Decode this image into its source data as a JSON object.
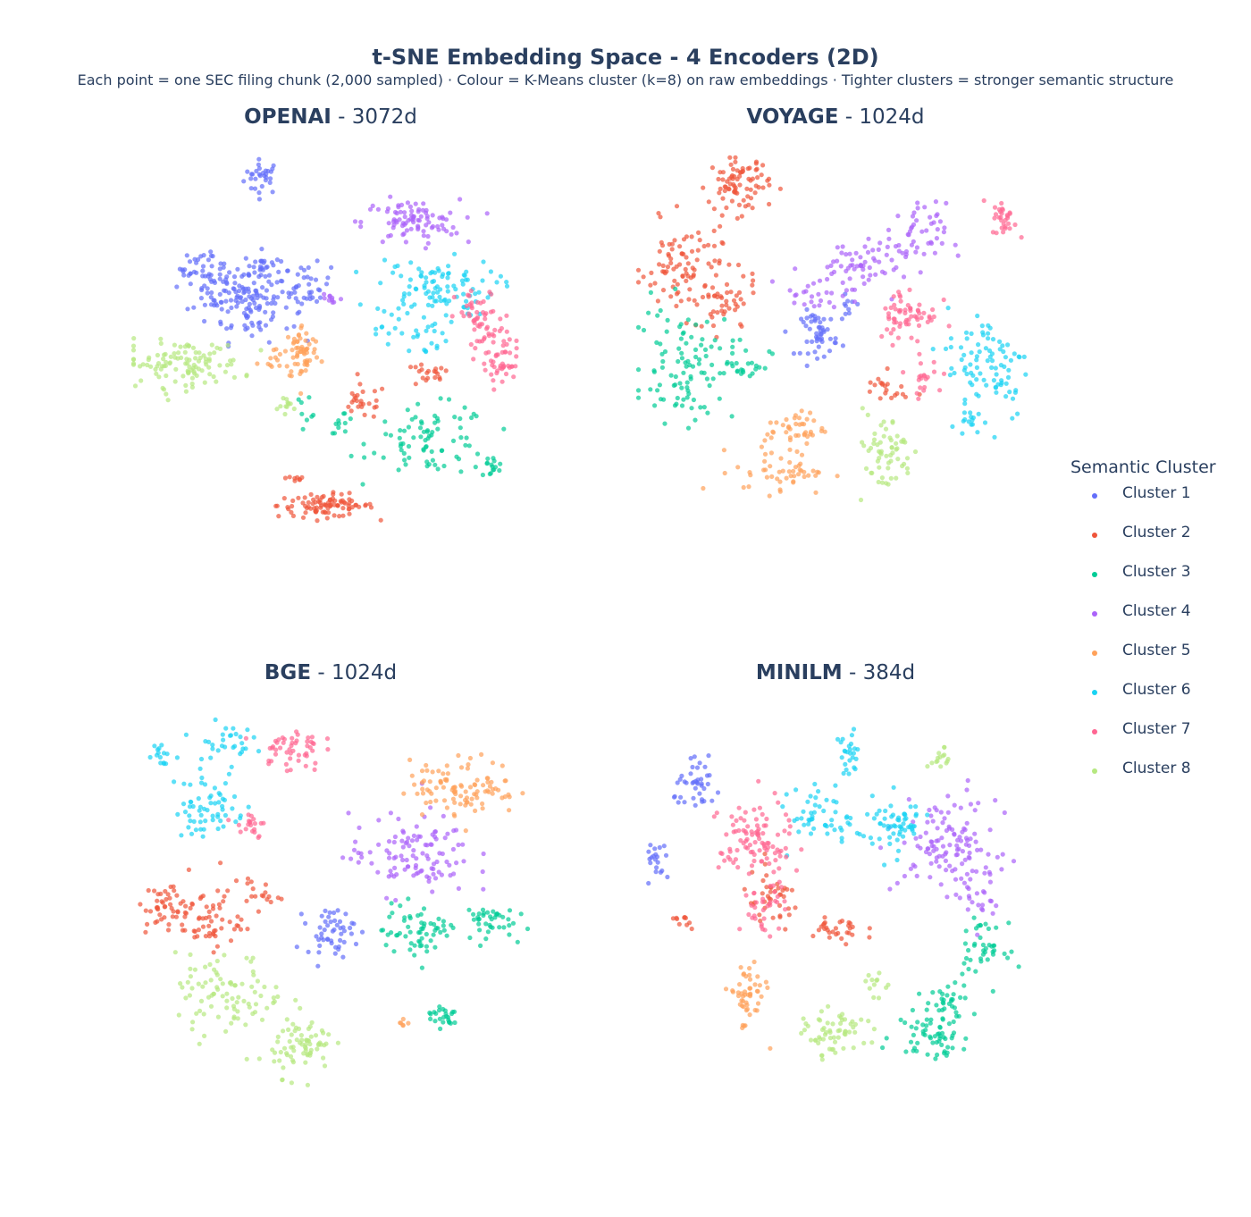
{
  "title": "t-SNE Embedding Space - 4 Encoders (2D)",
  "subtitle": "Each point = one SEC filing chunk (2,000 sampled) · Colour = K-Means cluster (k=8) on raw embeddings · Tighter clusters = stronger semantic structure",
  "legend": {
    "title": "Semantic Cluster",
    "items": [
      "Cluster 1",
      "Cluster 2",
      "Cluster 3",
      "Cluster 4",
      "Cluster 5",
      "Cluster 6",
      "Cluster 7",
      "Cluster 8"
    ]
  },
  "colors": [
    "#636efa",
    "#ef553b",
    "#00cc96",
    "#ab63fa",
    "#ffa15a",
    "#19d3f3",
    "#ff6692",
    "#b6e880"
  ],
  "chart_data": [
    {
      "type": "scatter",
      "panel_title_bold": "OPENAI",
      "panel_title_rest": " - 3072d",
      "xlim": [
        -50,
        50
      ],
      "ylim": [
        -50,
        50
      ],
      "clusters": [
        {
          "name": "Cluster 1",
          "centers": [
            [
              -17,
              44,
              3,
              3,
              30
            ],
            [
              -33,
              20,
              3,
              3,
              20
            ],
            [
              -27,
              15,
              6,
              5,
              70
            ],
            [
              -20,
              10,
              7,
              6,
              80
            ],
            [
              -17,
              20,
              3,
              3,
              30
            ],
            [
              -6,
              15,
              4,
              4,
              40
            ]
          ]
        },
        {
          "name": "Cluster 2",
          "centers": [
            [
              -1,
              -42,
              8,
              2,
              90
            ],
            [
              8,
              -15,
              4,
              3,
              25
            ],
            [
              24,
              -8,
              4,
              2,
              20
            ],
            [
              -9,
              -35,
              2,
              1,
              8
            ]
          ]
        },
        {
          "name": "Cluster 3",
          "centers": [
            [
              25,
              -25,
              10,
              6,
              80
            ],
            [
              3,
              -20,
              2,
              2,
              10
            ],
            [
              40,
              -32,
              2,
              2,
              15
            ],
            [
              -6,
              -16,
              2,
              2,
              8
            ]
          ]
        },
        {
          "name": "Cluster 4",
          "centers": [
            [
              20,
              32,
              8,
              4,
              90
            ],
            [
              0,
              12,
              2,
              2,
              10
            ]
          ]
        },
        {
          "name": "Cluster 5",
          "centers": [
            [
              -7,
              -2,
              3,
              5,
              60
            ],
            [
              -15,
              -4,
              2,
              2,
              10
            ]
          ]
        },
        {
          "name": "Cluster 6",
          "centers": [
            [
              26,
              15,
              10,
              5,
              100
            ],
            [
              20,
              3,
              6,
              4,
              30
            ]
          ]
        },
        {
          "name": "Cluster 7",
          "centers": [
            [
              42,
              -5,
              4,
              4,
              40
            ],
            [
              37,
              7,
              4,
              5,
              40
            ],
            [
              40,
              3,
              3,
              3,
              20
            ]
          ]
        },
        {
          "name": "Cluster 8",
          "centers": [
            [
              -37,
              -5,
              10,
              4,
              110
            ],
            [
              -10,
              -16,
              2,
              2,
              12
            ]
          ]
        }
      ]
    },
    {
      "type": "scatter",
      "panel_title_bold": "VOYAGE",
      "panel_title_rest": " - 1024d",
      "xlim": [
        -50,
        50
      ],
      "ylim": [
        -50,
        50
      ],
      "clusters": [
        {
          "name": "Cluster 1",
          "centers": [
            [
              -4,
              3,
              3,
              4,
              50
            ],
            [
              3,
              10,
              2,
              2,
              10
            ]
          ]
        },
        {
          "name": "Cluster 2",
          "centers": [
            [
              -24,
              42,
              5,
              5,
              80
            ],
            [
              -37,
              20,
              8,
              8,
              90
            ],
            [
              -28,
              10,
              6,
              5,
              40
            ],
            [
              12,
              -12,
              4,
              3,
              20
            ]
          ]
        },
        {
          "name": "Cluster 3",
          "centers": [
            [
              -37,
              -5,
              8,
              10,
              100
            ],
            [
              -22,
              -5,
              4,
              3,
              20
            ]
          ]
        },
        {
          "name": "Cluster 4",
          "centers": [
            [
              4,
              20,
              8,
              5,
              60
            ],
            [
              20,
              28,
              5,
              6,
              50
            ],
            [
              -6,
              13,
              5,
              3,
              20
            ]
          ]
        },
        {
          "name": "Cluster 5",
          "centers": [
            [
              -13,
              -33,
              8,
              4,
              50
            ],
            [
              -10,
              -22,
              5,
              3,
              40
            ]
          ]
        },
        {
          "name": "Cluster 6",
          "centers": [
            [
              38,
              -5,
              7,
              10,
              90
            ],
            [
              34,
              -20,
              2,
              2,
              12
            ]
          ]
        },
        {
          "name": "Cluster 7",
          "centers": [
            [
              42,
              33,
              2,
              3,
              30
            ],
            [
              18,
              8,
              5,
              5,
              60
            ],
            [
              22,
              -8,
              3,
              3,
              20
            ]
          ]
        },
        {
          "name": "Cluster 8",
          "centers": [
            [
              12,
              -28,
              5,
              7,
              60
            ]
          ]
        }
      ]
    },
    {
      "type": "scatter",
      "panel_title_bold": "BGE",
      "panel_title_rest": " - 1024d",
      "xlim": [
        -50,
        50
      ],
      "ylim": [
        -50,
        50
      ],
      "clusters": [
        {
          "name": "Cluster 1",
          "centers": [
            [
              0,
              -8,
              4,
              4,
              50
            ]
          ]
        },
        {
          "name": "Cluster 2",
          "centers": [
            [
              -40,
              -2,
              4,
              5,
              50
            ],
            [
              -30,
              -5,
              5,
              5,
              50
            ],
            [
              -20,
              2,
              5,
              3,
              20
            ]
          ]
        },
        {
          "name": "Cluster 3",
          "centers": [
            [
              22,
              -8,
              6,
              5,
              60
            ],
            [
              38,
              -5,
              5,
              3,
              40
            ],
            [
              28,
              -30,
              3,
              2,
              25
            ]
          ]
        },
        {
          "name": "Cluster 4",
          "centers": [
            [
              20,
              12,
              10,
              7,
              110
            ]
          ]
        },
        {
          "name": "Cluster 5",
          "centers": [
            [
              33,
              30,
              9,
              5,
              100
            ],
            [
              18,
              -32,
              1,
              1,
              6
            ]
          ]
        },
        {
          "name": "Cluster 6",
          "centers": [
            [
              -42,
              38,
              2,
              2,
              15
            ],
            [
              -30,
              25,
              6,
              6,
              60
            ],
            [
              -27,
              42,
              5,
              3,
              30
            ]
          ]
        },
        {
          "name": "Cluster 7",
          "centers": [
            [
              -10,
              40,
              5,
              4,
              50
            ],
            [
              -20,
              20,
              3,
              3,
              20
            ]
          ]
        },
        {
          "name": "Cluster 8",
          "centers": [
            [
              -25,
              -25,
              9,
              7,
              90
            ],
            [
              -7,
              -38,
              5,
              5,
              70
            ]
          ]
        }
      ]
    },
    {
      "type": "scatter",
      "panel_title_bold": "MINILM",
      "panel_title_rest": " - 384d",
      "xlim": [
        -50,
        50
      ],
      "ylim": [
        -50,
        50
      ],
      "clusters": [
        {
          "name": "Cluster 1",
          "centers": [
            [
              -34,
              30,
              4,
              4,
              40
            ],
            [
              -44,
              10,
              2,
              4,
              20
            ]
          ]
        },
        {
          "name": "Cluster 2",
          "centers": [
            [
              -16,
              0,
              5,
              5,
              40
            ],
            [
              0,
              -8,
              5,
              3,
              30
            ],
            [
              -38,
              -5,
              2,
              2,
              10
            ]
          ]
        },
        {
          "name": "Cluster 3",
          "centers": [
            [
              24,
              -35,
              6,
              4,
              60
            ],
            [
              28,
              -25,
              5,
              3,
              30
            ],
            [
              36,
              -12,
              4,
              4,
              40
            ]
          ]
        },
        {
          "name": "Cluster 4",
          "centers": [
            [
              28,
              15,
              8,
              8,
              110
            ],
            [
              36,
              2,
              4,
              6,
              30
            ]
          ]
        },
        {
          "name": "Cluster 5",
          "centers": [
            [
              -22,
              -25,
              3,
              6,
              50
            ]
          ]
        },
        {
          "name": "Cluster 6",
          "centers": [
            [
              3,
              38,
              2,
              4,
              25
            ],
            [
              -2,
              22,
              6,
              5,
              50
            ],
            [
              14,
              20,
              6,
              5,
              60
            ]
          ]
        },
        {
          "name": "Cluster 7",
          "centers": [
            [
              -20,
              15,
              6,
              8,
              100
            ],
            [
              -18,
              -2,
              4,
              4,
              30
            ]
          ]
        },
        {
          "name": "Cluster 8",
          "centers": [
            [
              0,
              -35,
              5,
              4,
              60
            ],
            [
              26,
              37,
              2,
              2,
              15
            ],
            [
              10,
              -22,
              2,
              2,
              12
            ]
          ]
        }
      ]
    }
  ]
}
